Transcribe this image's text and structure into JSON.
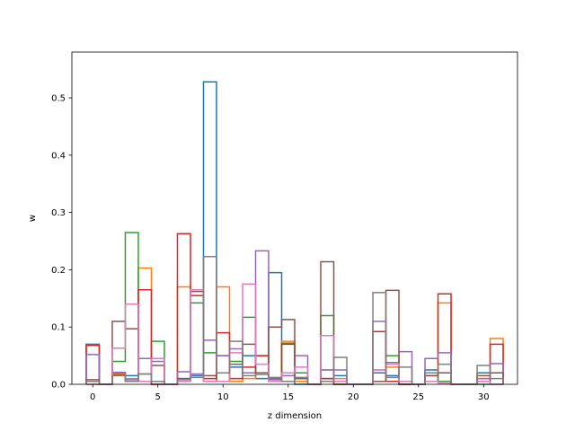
{
  "chart_data": {
    "type": "step-histogram",
    "xlabel": "z dimension",
    "ylabel": "w",
    "xlim": [
      -1.6,
      32.6
    ],
    "ylim": [
      0,
      0.58
    ],
    "xticks": [
      0,
      5,
      10,
      15,
      20,
      25,
      30
    ],
    "yticks": [
      0.0,
      0.1,
      0.2,
      0.3,
      0.4,
      0.5
    ],
    "ytick_labels": [
      "0.0",
      "0.1",
      "0.2",
      "0.3",
      "0.4",
      "0.5"
    ],
    "bins": [
      -0.5,
      0.5,
      1.5,
      2.5,
      3.5,
      4.5,
      5.5,
      6.5,
      7.5,
      8.5,
      9.5,
      10.5,
      11.5,
      12.5,
      13.5,
      14.5,
      15.5,
      16.5,
      17.5,
      18.5,
      19.5,
      20.5,
      21.5,
      22.5,
      23.5,
      24.5,
      25.5,
      26.5,
      27.5,
      28.5,
      29.5,
      30.5,
      31.5
    ],
    "series": [
      {
        "color": "#1f77b4",
        "values": [
          0.07,
          0,
          0.02,
          0.015,
          0.005,
          0,
          0,
          0.01,
          0.015,
          0.528,
          0.005,
          0.03,
          0.05,
          0.01,
          0.195,
          0.02,
          0,
          0,
          0.01,
          0.015,
          0,
          0,
          0.02,
          0.015,
          0,
          0,
          0.025,
          0.005,
          0,
          0,
          0.02,
          0
        ]
      },
      {
        "color": "#ff7f0e",
        "values": [
          0.068,
          0,
          0.018,
          0.01,
          0.203,
          0.005,
          0,
          0.17,
          0.165,
          0.005,
          0.17,
          0.005,
          0.01,
          0.05,
          0.005,
          0.075,
          0.005,
          0,
          0.025,
          0.01,
          0,
          0,
          0.025,
          0.03,
          0,
          0,
          0.02,
          0.142,
          0,
          0,
          0.01,
          0.08
        ]
      },
      {
        "color": "#2ca02c",
        "values": [
          0,
          0,
          0.04,
          0.265,
          0.045,
          0.075,
          0,
          0.005,
          0.142,
          0.055,
          0.05,
          0.04,
          0.117,
          0.02,
          0.01,
          0.072,
          0.02,
          0,
          0.12,
          0,
          0,
          0,
          0.005,
          0.05,
          0,
          0,
          0.02,
          0.005,
          0,
          0,
          0,
          0
        ]
      },
      {
        "color": "#d62728",
        "values": [
          0.068,
          0,
          0.016,
          0.005,
          0.165,
          0,
          0,
          0.263,
          0.155,
          0.01,
          0.09,
          0.01,
          0.03,
          0.05,
          0.005,
          0.07,
          0.01,
          0,
          0.01,
          0,
          0,
          0,
          0.092,
          0.005,
          0,
          0,
          0.015,
          0.158,
          0,
          0,
          0.005,
          0.07
        ]
      },
      {
        "color": "#9467bd",
        "values": [
          0.052,
          0,
          0.021,
          0.008,
          0.045,
          0.04,
          0,
          0.022,
          0.018,
          0.077,
          0.05,
          0.062,
          0.02,
          0.233,
          0.008,
          0.015,
          0.05,
          0,
          0.025,
          0.025,
          0,
          0,
          0.11,
          0.038,
          0.057,
          0,
          0.045,
          0.055,
          0,
          0,
          0.01,
          0.036
        ]
      },
      {
        "color": "#8c564b",
        "values": [
          0.008,
          0,
          0.11,
          0.097,
          0.018,
          0.033,
          0,
          0.01,
          0.162,
          0.015,
          0.02,
          0.035,
          0.07,
          0.02,
          0.1,
          0.113,
          0.01,
          0,
          0.214,
          0,
          0,
          0,
          0.005,
          0.164,
          0,
          0,
          0.015,
          0.02,
          0,
          0,
          0.015,
          0.02
        ]
      },
      {
        "color": "#e377c2",
        "values": [
          0,
          0,
          0.063,
          0.14,
          0.005,
          0.045,
          0,
          0.005,
          0.165,
          0.005,
          0.005,
          0.055,
          0.175,
          0.035,
          0.005,
          0.02,
          0.03,
          0,
          0.085,
          0.005,
          0,
          0,
          0.025,
          0.035,
          0.005,
          0,
          0.005,
          0.002,
          0,
          0,
          0.005,
          0
        ]
      },
      {
        "color": "#7f7f7f",
        "values": [
          0.005,
          0,
          0.015,
          0.005,
          0.018,
          0.005,
          0,
          0.008,
          0.012,
          0.223,
          0.02,
          0.075,
          0.015,
          0.017,
          0.012,
          0.005,
          0.012,
          0,
          0.005,
          0.047,
          0,
          0,
          0.16,
          0.012,
          0.03,
          0,
          0.02,
          0.035,
          0,
          0,
          0.033,
          0.01
        ]
      }
    ]
  }
}
